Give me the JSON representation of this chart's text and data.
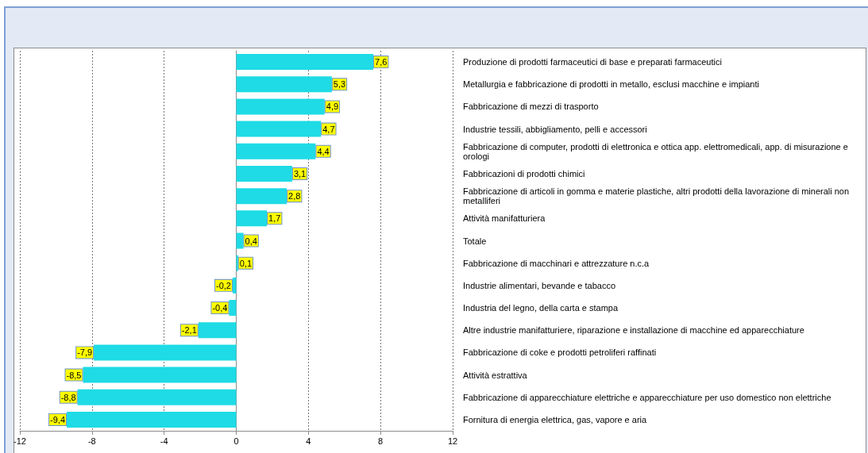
{
  "chart_data": {
    "type": "bar",
    "orientation": "horizontal",
    "categories": [
      "Produzione di prodotti farmaceutici di base e preparati farmaceutici",
      "Metallurgia e fabbricazione di prodotti in metallo, esclusi macchine e impianti",
      "Fabbricazione di mezzi di trasporto",
      "Industrie tessili, abbigliamento, pelli e accessori",
      "Fabbricazione di computer, prodotti di elettronica e ottica app. elettromedicali, app. di misurazione e orologi",
      "Fabbricazioni di prodotti chimici",
      "Fabbricazione di articoli in gomma e materie plastiche, altri prodotti della lavorazione di minerali non metalliferi",
      "Attività manifatturiera",
      "Totale",
      "Fabbricazione di macchinari e attrezzature n.c.a",
      "Industrie alimentari, bevande e tabacco",
      "Industria del legno, della carta e stampa",
      "Altre industrie manifatturiere, riparazione e installazione di macchine ed apparecchiature",
      "Fabbricazione di coke e prodotti petroliferi raffinati",
      "Attività estrattiva",
      "Fabbricazione di apparecchiature elettriche e apparecchiature per uso domestico non elettriche",
      "Fornitura di energia elettrica, gas, vapore e aria"
    ],
    "values": [
      7.6,
      5.3,
      4.9,
      4.7,
      4.4,
      3.1,
      2.8,
      1.7,
      0.4,
      0.1,
      -0.2,
      -0.4,
      -2.1,
      -7.9,
      -8.5,
      -8.8,
      -9.4
    ],
    "value_labels": [
      "7,6",
      "5,3",
      "4,9",
      "4,7",
      "4,4",
      "3,1",
      "2,8",
      "1,7",
      "0,4",
      "0,1",
      "-0,2",
      "-0,4",
      "-2,1",
      "-7,9",
      "-8,5",
      "-8,8",
      "-9,4"
    ],
    "color": "#1edbe5",
    "xlim": [
      -12,
      12
    ],
    "xticks": [
      -12,
      -8,
      -4,
      0,
      4,
      8,
      12
    ],
    "grid": "x"
  }
}
